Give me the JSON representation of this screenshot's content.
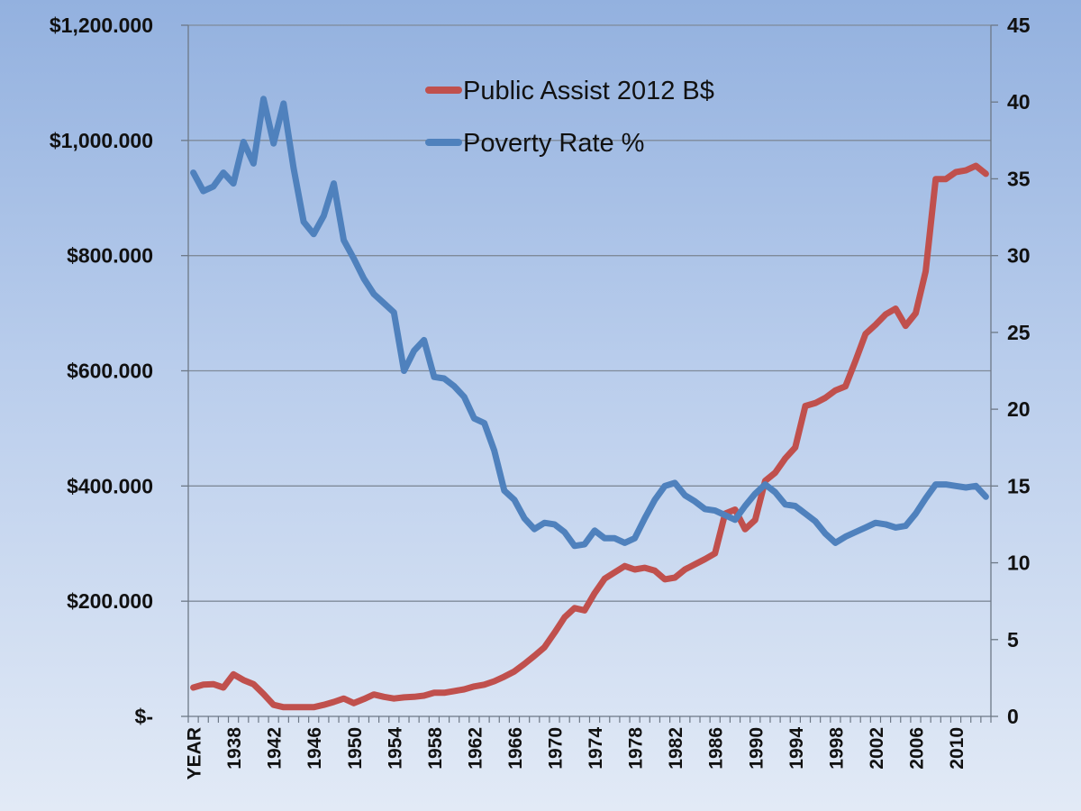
{
  "chart_data": {
    "type": "line",
    "title": "",
    "xlabel": "",
    "categories": [
      "YEAR",
      "1935",
      "1936",
      "1937",
      "1938",
      "1939",
      "1940",
      "1941",
      "1942",
      "1943",
      "1944",
      "1945",
      "1946",
      "1947",
      "1948",
      "1949",
      "1950",
      "1951",
      "1952",
      "1953",
      "1954",
      "1955",
      "1956",
      "1957",
      "1958",
      "1959",
      "1960",
      "1961",
      "1962",
      "1963",
      "1964",
      "1965",
      "1966",
      "1967",
      "1968",
      "1969",
      "1970",
      "1971",
      "1972",
      "1973",
      "1974",
      "1975",
      "1976",
      "1977",
      "1978",
      "1979",
      "1980",
      "1981",
      "1982",
      "1983",
      "1984",
      "1985",
      "1986",
      "1987",
      "1988",
      "1989",
      "1990",
      "1991",
      "1992",
      "1993",
      "1994",
      "1995",
      "1996",
      "1997",
      "1998",
      "1999",
      "2000",
      "2001",
      "2002",
      "2003",
      "2004",
      "2005",
      "2006",
      "2007",
      "2008",
      "2009",
      "2010",
      "2011",
      "2012",
      "2013"
    ],
    "x_tick_labels_every": 4,
    "y_left": {
      "label": "",
      "ylim": [
        0,
        1200
      ],
      "ticks": [
        0,
        200,
        400,
        600,
        800,
        1000,
        1200
      ],
      "tick_labels": [
        "$-",
        "$200.000",
        "$400.000",
        "$600.000",
        "$800.000",
        "$1,000.000",
        "$1,200.000"
      ]
    },
    "y_right": {
      "label": "",
      "ylim": [
        0,
        45
      ],
      "ticks": [
        0,
        5,
        10,
        15,
        20,
        25,
        30,
        35,
        40,
        45
      ],
      "tick_labels": [
        "0",
        "5",
        "10",
        "15",
        "20",
        "25",
        "30",
        "35",
        "40",
        "45"
      ]
    },
    "grid": true,
    "legend_position": "top-center",
    "series": [
      {
        "name": "Public Assist 2012 B$",
        "axis": "left",
        "color": "#c0504d",
        "values": [
          50,
          55,
          56,
          50,
          73,
          63,
          56,
          39,
          20,
          16,
          16,
          16,
          16,
          20,
          25,
          31,
          23,
          30,
          38,
          34,
          31,
          33,
          34,
          36,
          41,
          41,
          44,
          47,
          52,
          55,
          61,
          69,
          78,
          91,
          105,
          120,
          145,
          172,
          188,
          184,
          214,
          239,
          250,
          261,
          255,
          258,
          253,
          238,
          241,
          255,
          264,
          273,
          283,
          352,
          359,
          325,
          341,
          409,
          423,
          448,
          467,
          539,
          544,
          553,
          566,
          573,
          617,
          664,
          680,
          698,
          708,
          678,
          700,
          773,
          933,
          933,
          945,
          948,
          956,
          942
        ]
      },
      {
        "name": "Poverty Rate %",
        "axis": "right",
        "color": "#4f81bd",
        "values": [
          35.4,
          34.2,
          34.5,
          35.4,
          34.7,
          37.4,
          36.0,
          40.2,
          37.3,
          39.9,
          35.7,
          32.2,
          31.4,
          32.6,
          34.7,
          31.0,
          29.8,
          28.5,
          27.5,
          26.9,
          26.3,
          22.5,
          23.8,
          24.5,
          22.1,
          22.0,
          21.5,
          20.8,
          19.4,
          19.1,
          17.3,
          14.7,
          14.1,
          12.9,
          12.2,
          12.6,
          12.5,
          12.0,
          11.1,
          11.2,
          12.1,
          11.6,
          11.6,
          11.3,
          11.6,
          12.9,
          14.1,
          15.0,
          15.2,
          14.4,
          14.0,
          13.5,
          13.4,
          13.1,
          12.8,
          13.7,
          14.5,
          15.1,
          14.6,
          13.8,
          13.7,
          13.2,
          12.7,
          11.9,
          11.3,
          11.7,
          12.0,
          12.3,
          12.6,
          12.5,
          12.3,
          12.4,
          13.2,
          14.2,
          15.1,
          15.1,
          15.0,
          14.9,
          15.0,
          14.3
        ]
      }
    ]
  }
}
